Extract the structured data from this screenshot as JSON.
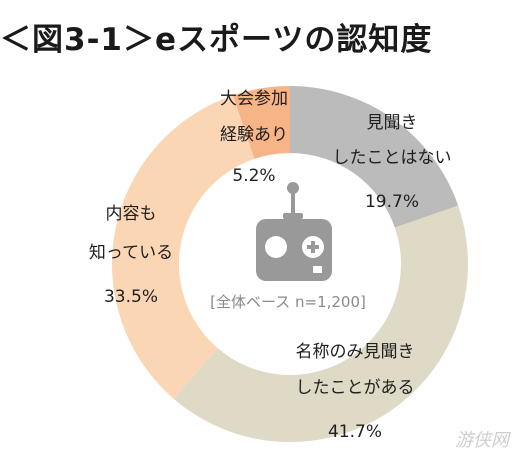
{
  "title": "＜図3-1＞eスポーツの認知度",
  "note": "[全体ベース n=1,200]",
  "watermark": "游侠网",
  "chart_data": {
    "type": "pie",
    "subtype": "donut",
    "title": "＜図3-1＞eスポーツの認知度",
    "slices": [
      {
        "label_lines": [
          "見聞き",
          "したことはない"
        ],
        "value": 19.7,
        "value_label": "19.7%",
        "color": "#bbbbbb"
      },
      {
        "label_lines": [
          "名称のみ見聞き",
          "したことがある"
        ],
        "value": 41.7,
        "value_label": "41.7%",
        "color": "#dedac5"
      },
      {
        "label_lines": [
          "内容も",
          "知っている"
        ],
        "value": 33.5,
        "value_label": "33.5%",
        "color": "#fbd6b5"
      },
      {
        "label_lines": [
          "大会参加",
          "経験あり"
        ],
        "value": 5.2,
        "value_label": "5.2%",
        "color": "#f7b486"
      }
    ],
    "icon": "game-controller-icon",
    "grid": false,
    "legend": "none"
  }
}
